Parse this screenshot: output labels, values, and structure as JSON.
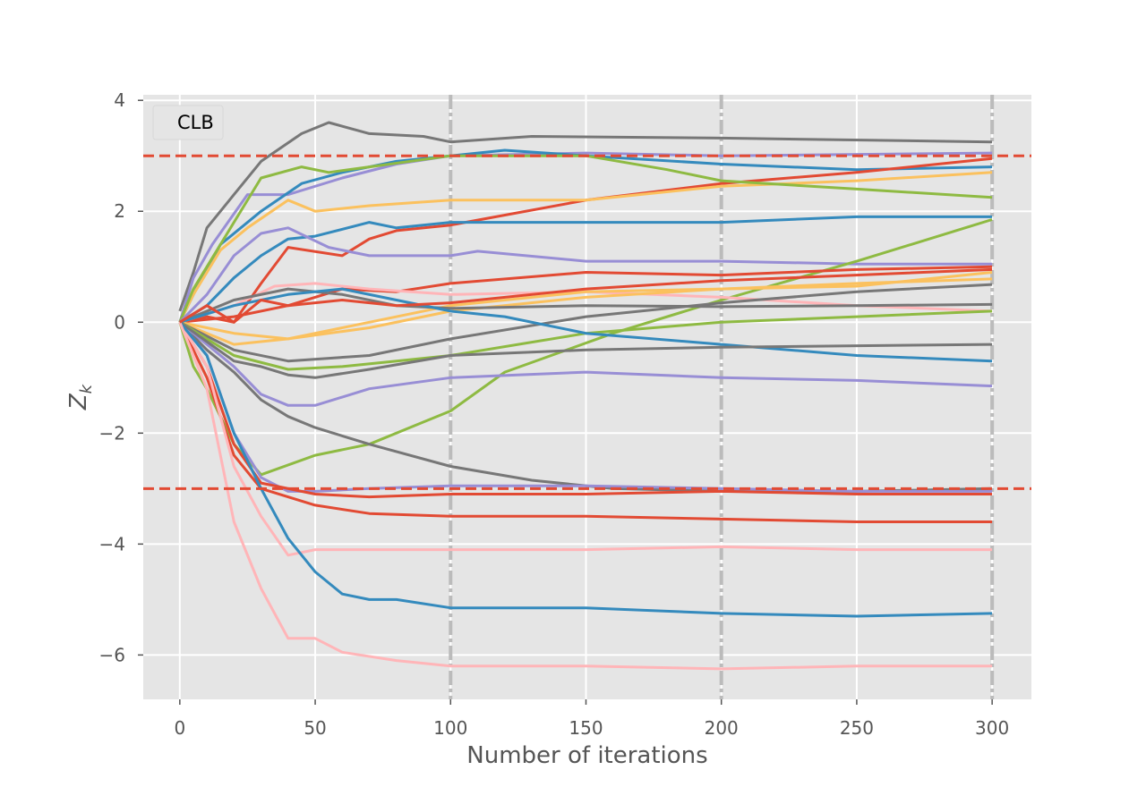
{
  "chart_data": {
    "type": "line",
    "title": "",
    "xlabel": "Number of iterations",
    "ylabel": "Z",
    "ylabel_subscript": "k",
    "xlim": [
      -13.5,
      314.5
    ],
    "ylim": [
      -6.8,
      4.1
    ],
    "xticks": [
      0,
      50,
      100,
      150,
      200,
      250,
      300
    ],
    "yticks": [
      -6,
      -4,
      -2,
      0,
      2,
      4
    ],
    "ytick_labels": [
      "−6",
      "−4",
      "−2",
      "0",
      "2",
      "4"
    ],
    "grid": true,
    "legend": {
      "placement": "top-left",
      "entries": [
        "CLB"
      ]
    },
    "reference_lines": {
      "horizontal": [
        3,
        -3
      ],
      "horizontal_color": "#E24A33",
      "vertical": [
        100,
        200,
        300
      ],
      "vertical_color": "#BBBBBB"
    },
    "colors": {
      "background": "#E5E5E5",
      "grid": "#FFFFFF",
      "red": "#E24A33",
      "blue": "#348ABD",
      "purple": "#988ED5",
      "gray": "#777777",
      "yellow": "#FBC15E",
      "green": "#8EBA42",
      "pink": "#FFB5B8"
    },
    "series": [
      {
        "color": "#777777",
        "x": [
          0,
          5,
          10,
          20,
          30,
          45,
          55,
          70,
          90,
          100,
          130,
          200,
          300
        ],
        "y": [
          0.2,
          0.9,
          1.7,
          2.3,
          2.9,
          3.4,
          3.6,
          3.4,
          3.35,
          3.25,
          3.35,
          3.32,
          3.25
        ]
      },
      {
        "color": "#988ED5",
        "x": [
          0,
          5,
          12,
          25,
          40,
          60,
          80,
          100,
          150,
          200,
          300
        ],
        "y": [
          0,
          0.8,
          1.4,
          2.3,
          2.3,
          2.6,
          2.85,
          3.0,
          3.05,
          3.0,
          3.05
        ]
      },
      {
        "color": "#348ABD",
        "x": [
          0,
          5,
          15,
          30,
          45,
          60,
          80,
          100,
          120,
          150,
          200,
          250,
          300
        ],
        "y": [
          0,
          0.5,
          1.4,
          2.0,
          2.5,
          2.7,
          2.9,
          3.0,
          3.1,
          3.0,
          2.85,
          2.75,
          2.8
        ]
      },
      {
        "color": "#E24A33",
        "x": [
          0,
          10,
          20,
          30,
          40,
          60,
          70,
          80,
          100,
          150,
          200,
          250,
          300
        ],
        "y": [
          0,
          0.1,
          0.0,
          0.7,
          1.35,
          1.2,
          1.5,
          1.65,
          1.75,
          2.2,
          2.5,
          2.7,
          2.95
        ]
      },
      {
        "color": "#FBC15E",
        "x": [
          0,
          5,
          15,
          25,
          40,
          50,
          70,
          100,
          150,
          200,
          250,
          300
        ],
        "y": [
          0,
          0.5,
          1.3,
          1.7,
          2.2,
          2.0,
          2.1,
          2.2,
          2.2,
          2.45,
          2.55,
          2.7
        ]
      },
      {
        "color": "#8EBA42",
        "x": [
          0,
          5,
          10,
          20,
          30,
          45,
          55,
          70,
          100,
          150,
          180,
          200,
          250,
          300
        ],
        "y": [
          0,
          0.6,
          1.0,
          1.8,
          2.6,
          2.8,
          2.7,
          2.8,
          3.0,
          3.0,
          2.75,
          2.55,
          2.4,
          2.25
        ]
      },
      {
        "color": "#348ABD",
        "x": [
          0,
          10,
          20,
          30,
          40,
          50,
          70,
          80,
          100,
          150,
          200,
          250,
          300
        ],
        "y": [
          0,
          0.3,
          0.8,
          1.2,
          1.5,
          1.55,
          1.8,
          1.7,
          1.8,
          1.8,
          1.8,
          1.9,
          1.9
        ]
      },
      {
        "color": "#988ED5",
        "x": [
          0,
          10,
          20,
          30,
          40,
          55,
          70,
          100,
          110,
          150,
          200,
          250,
          300
        ],
        "y": [
          0,
          0.5,
          1.2,
          1.6,
          1.7,
          1.35,
          1.2,
          1.2,
          1.28,
          1.1,
          1.1,
          1.05,
          1.05
        ]
      },
      {
        "color": "#8EBA42",
        "x": [
          0,
          5,
          10,
          20,
          30,
          50,
          70,
          90,
          100,
          120,
          160,
          200,
          250,
          300
        ],
        "y": [
          0,
          -0.8,
          -1.2,
          -2.2,
          -2.75,
          -2.4,
          -2.2,
          -1.8,
          -1.6,
          -0.9,
          -0.2,
          0.4,
          1.1,
          1.85
        ]
      },
      {
        "color": "#E24A33",
        "x": [
          0,
          20,
          40,
          60,
          80,
          100,
          150,
          200,
          250,
          300
        ],
        "y": [
          0,
          0.1,
          0.3,
          0.6,
          0.55,
          0.7,
          0.9,
          0.85,
          0.95,
          1.0
        ]
      },
      {
        "color": "#FFB5B8",
        "x": [
          0,
          20,
          35,
          50,
          70,
          100,
          150,
          200,
          250,
          300
        ],
        "y": [
          0,
          0.3,
          0.65,
          0.7,
          0.6,
          0.5,
          0.55,
          0.45,
          0.3,
          0.2
        ]
      },
      {
        "color": "#FBC15E",
        "x": [
          0,
          20,
          40,
          70,
          100,
          150,
          200,
          250,
          300
        ],
        "y": [
          0,
          -0.2,
          -0.3,
          0.0,
          0.3,
          0.55,
          0.6,
          0.65,
          0.9
        ]
      },
      {
        "color": "#FBC15E",
        "x": [
          0,
          20,
          40,
          70,
          100,
          150,
          200,
          250,
          300
        ],
        "y": [
          0,
          -0.4,
          -0.3,
          -0.1,
          0.2,
          0.45,
          0.6,
          0.7,
          0.78
        ]
      },
      {
        "color": "#777777",
        "x": [
          0,
          20,
          40,
          70,
          100,
          150,
          200,
          250,
          300
        ],
        "y": [
          0,
          -0.5,
          -0.7,
          -0.6,
          -0.3,
          0.1,
          0.35,
          0.55,
          0.68
        ]
      },
      {
        "color": "#777777",
        "x": [
          0,
          20,
          40,
          60,
          80,
          100,
          150,
          200,
          250,
          300
        ],
        "y": [
          0,
          0.4,
          0.6,
          0.5,
          0.3,
          0.25,
          0.3,
          0.28,
          0.3,
          0.32
        ]
      },
      {
        "color": "#8EBA42",
        "x": [
          0,
          20,
          40,
          60,
          80,
          100,
          150,
          200,
          250,
          300
        ],
        "y": [
          0,
          -0.6,
          -0.85,
          -0.8,
          -0.7,
          -0.6,
          -0.2,
          0.0,
          0.1,
          0.2
        ]
      },
      {
        "color": "#348ABD",
        "x": [
          0,
          20,
          40,
          60,
          80,
          100,
          120,
          150,
          200,
          250,
          300
        ],
        "y": [
          0,
          0.3,
          0.5,
          0.6,
          0.4,
          0.2,
          0.1,
          -0.2,
          -0.4,
          -0.6,
          -0.7
        ]
      },
      {
        "color": "#777777",
        "x": [
          0,
          10,
          20,
          30,
          40,
          50,
          70,
          100,
          130,
          160,
          200,
          250,
          300
        ],
        "y": [
          0,
          -0.5,
          -0.9,
          -1.4,
          -1.7,
          -1.9,
          -2.2,
          -2.6,
          -2.85,
          -3.0,
          -3.05,
          -3.05,
          -3.0
        ]
      },
      {
        "color": "#988ED5",
        "x": [
          0,
          10,
          20,
          30,
          40,
          50,
          70,
          100,
          150,
          200,
          250,
          300
        ],
        "y": [
          0,
          -0.4,
          -0.8,
          -1.3,
          -1.5,
          -1.5,
          -1.2,
          -1.0,
          -0.9,
          -1.0,
          -1.05,
          -1.15
        ]
      },
      {
        "color": "#988ED5",
        "x": [
          0,
          10,
          20,
          30,
          40,
          50,
          70,
          100,
          150,
          200,
          250,
          300
        ],
        "y": [
          0,
          -0.6,
          -2.0,
          -2.8,
          -3.05,
          -3.05,
          -3.0,
          -2.95,
          -2.95,
          -3.0,
          -3.05,
          -3.05
        ]
      },
      {
        "color": "#777777",
        "x": [
          0,
          20,
          30,
          40,
          50,
          70,
          100,
          150,
          200,
          300
        ],
        "y": [
          0,
          -0.7,
          -0.8,
          -0.95,
          -1.0,
          -0.85,
          -0.6,
          -0.5,
          -0.45,
          -0.4
        ]
      },
      {
        "color": "#E24A33",
        "x": [
          0,
          10,
          20,
          30,
          50,
          70,
          100,
          150,
          200,
          250,
          300
        ],
        "y": [
          0,
          -0.8,
          -2.2,
          -2.9,
          -3.1,
          -3.15,
          -3.1,
          -3.1,
          -3.05,
          -3.1,
          -3.1
        ]
      },
      {
        "color": "#E24A33",
        "x": [
          0,
          10,
          20,
          30,
          50,
          70,
          100,
          150,
          200,
          250,
          300
        ],
        "y": [
          0,
          -1.0,
          -2.4,
          -3.0,
          -3.3,
          -3.45,
          -3.5,
          -3.5,
          -3.55,
          -3.6,
          -3.6
        ]
      },
      {
        "color": "#FFB5B8",
        "x": [
          0,
          10,
          20,
          30,
          40,
          50,
          70,
          100,
          150,
          200,
          250,
          300
        ],
        "y": [
          0,
          -0.8,
          -2.6,
          -3.5,
          -4.2,
          -4.1,
          -4.1,
          -4.1,
          -4.1,
          -4.05,
          -4.1,
          -4.1
        ]
      },
      {
        "color": "#348ABD",
        "x": [
          0,
          10,
          20,
          30,
          40,
          50,
          60,
          70,
          80,
          100,
          150,
          200,
          250,
          300
        ],
        "y": [
          0,
          -0.6,
          -2.0,
          -3.0,
          -3.9,
          -4.5,
          -4.9,
          -5.0,
          -5.0,
          -5.15,
          -5.15,
          -5.25,
          -5.3,
          -5.25
        ]
      },
      {
        "color": "#FFB5B8",
        "x": [
          0,
          10,
          20,
          30,
          40,
          50,
          60,
          80,
          100,
          150,
          200,
          250,
          300
        ],
        "y": [
          0,
          -1.2,
          -3.6,
          -4.8,
          -5.7,
          -5.7,
          -5.95,
          -6.1,
          -6.2,
          -6.2,
          -6.25,
          -6.2,
          -6.2
        ]
      },
      {
        "color": "#E24A33",
        "x": [
          0,
          10,
          20,
          30,
          40,
          60,
          80,
          100,
          150,
          200,
          300
        ],
        "y": [
          0,
          0.3,
          0.0,
          0.4,
          0.3,
          0.4,
          0.3,
          0.35,
          0.6,
          0.75,
          0.95
        ]
      }
    ]
  }
}
